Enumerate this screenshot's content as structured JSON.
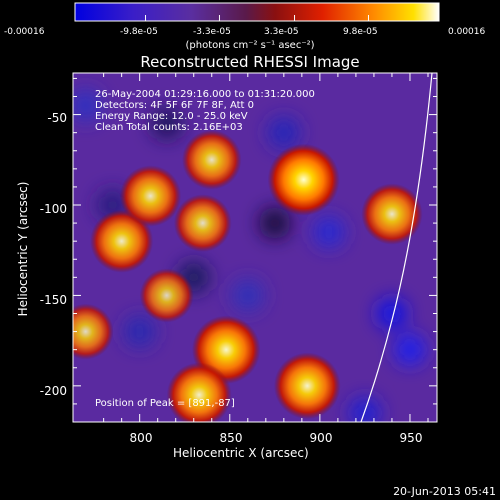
{
  "chart_data": {
    "type": "heatmap",
    "title": "Reconstructed RHESSI Image",
    "xlabel": "Heliocentric X (arcsec)",
    "ylabel": "Heliocentric Y (arcsec)",
    "xlim": [
      763,
      965
    ],
    "ylim": [
      -220,
      -27
    ],
    "xticks": [
      "800",
      "850",
      "900",
      "950"
    ],
    "yticks": [
      "-50",
      "-100",
      "-150",
      "-200"
    ],
    "colorbar": {
      "unit_label": "(photons cm⁻² s⁻¹ asec⁻²)",
      "range": [
        -0.00016,
        0.00016
      ],
      "tick_labels": [
        "-0.00016",
        "-9.8e-05",
        "-3.3e-05",
        "3.3e-05",
        "9.8e-05",
        "0.00016"
      ]
    },
    "annotations": {
      "time_range": "26-May-2004 01:29:16.000 to 01:31:20.000",
      "detectors": "Detectors: 4F 5F 6F 7F 8F, Att 0",
      "energy_range": "Energy Range: 12.0 - 25.0 keV",
      "algorithm": "Clean     Total counts: 2.16E+03",
      "peak": "Position of Peak = [891,-87]"
    },
    "peak_position": [
      891,
      -87
    ],
    "bright_sources": [
      {
        "x": 891,
        "y": -86,
        "level": 1.0
      },
      {
        "x": 893,
        "y": -200,
        "level": 0.85
      },
      {
        "x": 848,
        "y": -180,
        "level": 0.9
      },
      {
        "x": 833,
        "y": -205,
        "level": 0.8
      },
      {
        "x": 790,
        "y": -120,
        "level": 0.75
      },
      {
        "x": 806,
        "y": -95,
        "level": 0.7
      },
      {
        "x": 840,
        "y": -75,
        "level": 0.65
      },
      {
        "x": 940,
        "y": -105,
        "level": 0.7
      },
      {
        "x": 835,
        "y": -110,
        "level": 0.6
      },
      {
        "x": 770,
        "y": -170,
        "level": 0.55
      },
      {
        "x": 815,
        "y": -150,
        "level": 0.5
      }
    ]
  },
  "footer": {
    "date_stamp": "20-Jun-2013 05:41"
  }
}
